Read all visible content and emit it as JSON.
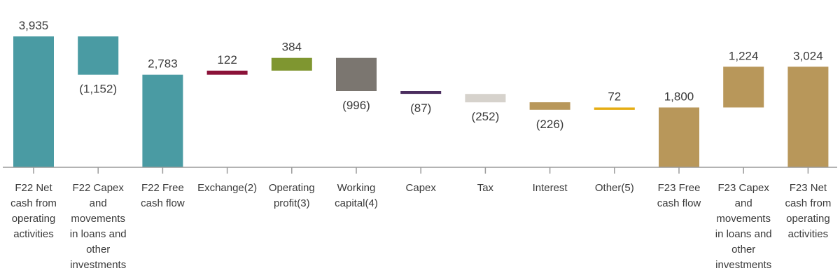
{
  "chart_data": {
    "type": "bar",
    "subtype": "waterfall",
    "categories": [
      [
        "F22 Net",
        "cash from",
        "operating",
        "activities"
      ],
      [
        "F22 Capex",
        "and",
        "movements",
        "in loans and",
        "other",
        "investments"
      ],
      [
        "F22 Free",
        "cash flow"
      ],
      [
        "Exchange(2)"
      ],
      [
        "Operating",
        "profit(3)"
      ],
      [
        "Working",
        "capital(4)"
      ],
      [
        "Capex"
      ],
      [
        "Tax"
      ],
      [
        "Interest"
      ],
      [
        "Other(5)"
      ],
      [
        "F23 Free",
        "cash flow"
      ],
      [
        "F23 Capex",
        "and",
        "movements",
        "in loans and",
        "other",
        "investments"
      ],
      [
        "F23 Net",
        "cash from",
        "operating",
        "activities"
      ]
    ],
    "values": [
      3935,
      -1152,
      2783,
      122,
      384,
      -996,
      -87,
      -252,
      -226,
      72,
      1800,
      1224,
      3024
    ],
    "value_labels": [
      "3,935",
      "(1,152)",
      "2,783",
      "122",
      "384",
      "(996)",
      "(87)",
      "(252)",
      "(226)",
      "72",
      "1,800",
      "1,224",
      "3,024"
    ],
    "bar_kind": [
      "total",
      "delta",
      "total",
      "delta",
      "delta",
      "delta",
      "delta",
      "delta",
      "delta",
      "delta",
      "total",
      "delta",
      "total"
    ],
    "colors": [
      "#4a9ba3",
      "#4a9ba3",
      "#4a9ba3",
      "#8b1238",
      "#7f9630",
      "#7b7670",
      "#4b2d5f",
      "#d6d2cc",
      "#b8975a",
      "#e5ad14",
      "#b8975a",
      "#b8975a",
      "#b8975a"
    ],
    "ylim": [
      0,
      4000
    ],
    "xlabel": "",
    "ylabel": "",
    "title": "",
    "grid": false,
    "legend": "none"
  }
}
